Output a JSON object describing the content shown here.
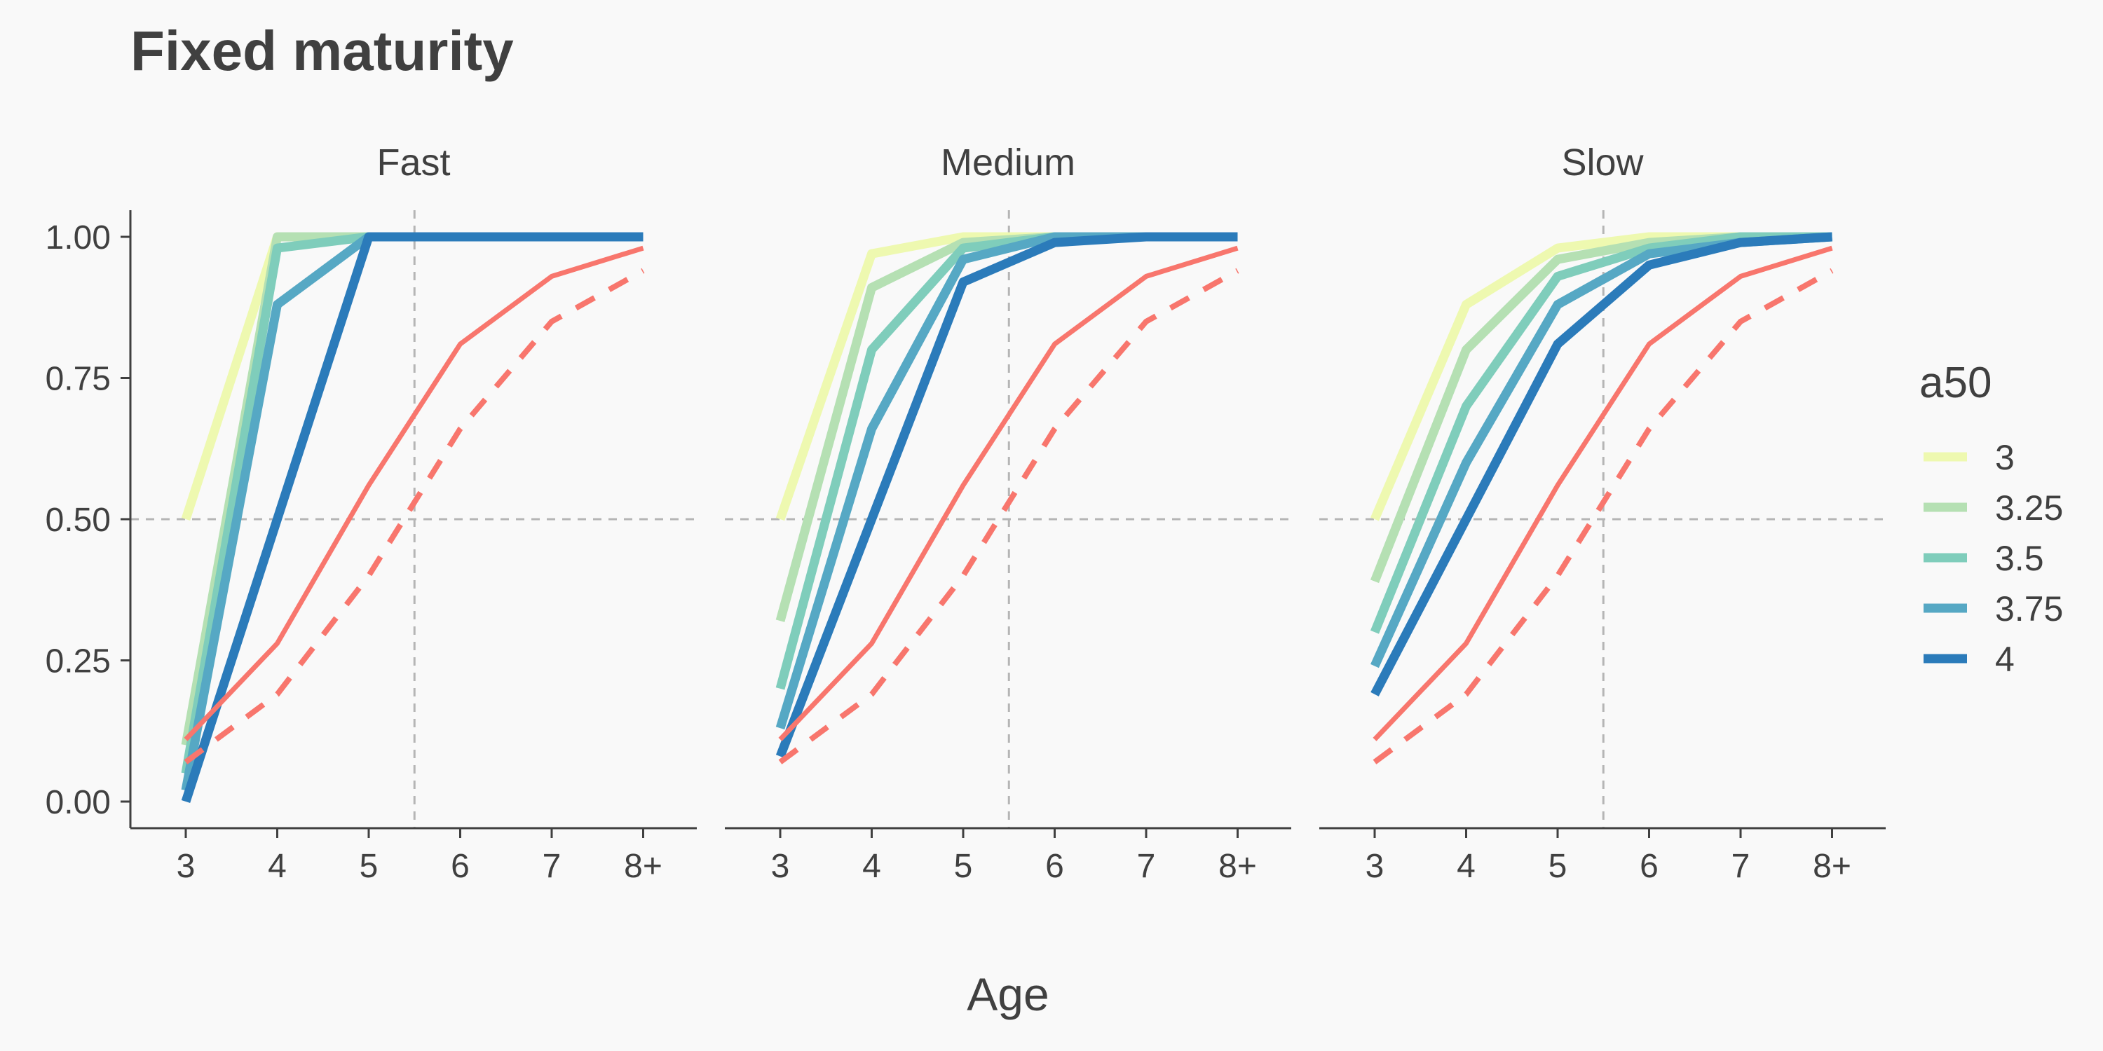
{
  "chart_data": {
    "type": "line",
    "title": "Fixed maturity",
    "xlabel": "Age",
    "ylabel": "",
    "x": [
      "3",
      "4",
      "5",
      "6",
      "7",
      "8+"
    ],
    "ylim": [
      0,
      1
    ],
    "yticks": [
      "0.00",
      "0.25",
      "0.50",
      "0.75",
      "1.00"
    ],
    "reference_lines": {
      "h": 0.5,
      "v": 5.5
    },
    "legend": {
      "title": "a50",
      "placement": "right",
      "entries": [
        {
          "label": "3",
          "color": "#eef9b0"
        },
        {
          "label": "3.25",
          "color": "#b5e0b3"
        },
        {
          "label": "3.5",
          "color": "#7fcdbb"
        },
        {
          "label": "3.75",
          "color": "#56a8c4"
        },
        {
          "label": "4",
          "color": "#2b7bba"
        }
      ]
    },
    "reference_curves": {
      "color": "#f8766d",
      "solid": [
        0.11,
        0.28,
        0.56,
        0.81,
        0.93,
        0.98
      ],
      "dashed": [
        0.07,
        0.19,
        0.4,
        0.66,
        0.85,
        0.94
      ]
    },
    "panels": [
      {
        "name": "Fast",
        "series": [
          {
            "name": "3",
            "values": [
              0.5,
              1.0,
              1.0,
              1.0,
              1.0,
              1.0
            ]
          },
          {
            "name": "3.25",
            "values": [
              0.1,
              1.0,
              1.0,
              1.0,
              1.0,
              1.0
            ]
          },
          {
            "name": "3.5",
            "values": [
              0.05,
              0.98,
              1.0,
              1.0,
              1.0,
              1.0
            ]
          },
          {
            "name": "3.75",
            "values": [
              0.02,
              0.88,
              1.0,
              1.0,
              1.0,
              1.0
            ]
          },
          {
            "name": "4",
            "values": [
              0.0,
              0.5,
              1.0,
              1.0,
              1.0,
              1.0
            ]
          }
        ]
      },
      {
        "name": "Medium",
        "series": [
          {
            "name": "3",
            "values": [
              0.5,
              0.97,
              1.0,
              1.0,
              1.0,
              1.0
            ]
          },
          {
            "name": "3.25",
            "values": [
              0.32,
              0.91,
              0.99,
              1.0,
              1.0,
              1.0
            ]
          },
          {
            "name": "3.5",
            "values": [
              0.2,
              0.8,
              0.98,
              1.0,
              1.0,
              1.0
            ]
          },
          {
            "name": "3.75",
            "values": [
              0.13,
              0.66,
              0.96,
              1.0,
              1.0,
              1.0
            ]
          },
          {
            "name": "4",
            "values": [
              0.08,
              0.5,
              0.92,
              0.99,
              1.0,
              1.0
            ]
          }
        ]
      },
      {
        "name": "Slow",
        "series": [
          {
            "name": "3",
            "values": [
              0.5,
              0.88,
              0.98,
              1.0,
              1.0,
              1.0
            ]
          },
          {
            "name": "3.25",
            "values": [
              0.39,
              0.8,
              0.96,
              0.99,
              1.0,
              1.0
            ]
          },
          {
            "name": "3.5",
            "values": [
              0.3,
              0.7,
              0.93,
              0.98,
              1.0,
              1.0
            ]
          },
          {
            "name": "3.75",
            "values": [
              0.24,
              0.6,
              0.88,
              0.97,
              0.99,
              1.0
            ]
          },
          {
            "name": "4",
            "values": [
              0.19,
              0.5,
              0.81,
              0.95,
              0.99,
              1.0
            ]
          }
        ]
      }
    ]
  }
}
